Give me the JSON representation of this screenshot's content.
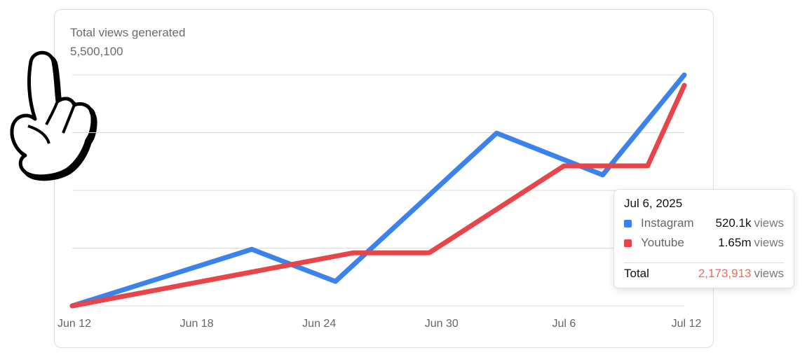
{
  "chart_data": {
    "type": "line",
    "title": "Total views generated",
    "subtitle": "5,500,100",
    "xlim": [
      0,
      30
    ],
    "xticks": [
      {
        "value": 0,
        "label": "Jun 12"
      },
      {
        "value": 6,
        "label": "Jun 18"
      },
      {
        "value": 12,
        "label": "Jun 24"
      },
      {
        "value": 18,
        "label": "Jun 30"
      },
      {
        "value": 24,
        "label": "Jul 6"
      },
      {
        "value": 30,
        "label": "Jul 12"
      }
    ],
    "ylim": [
      0,
      100
    ],
    "yticks": [
      0,
      25,
      50,
      75,
      100
    ],
    "grid": true,
    "series": [
      {
        "name": "Instagram",
        "color": "#3b82ef",
        "x": [
          0,
          8.8,
          12.9,
          20.8,
          26,
          30
        ],
        "values": [
          0,
          24.5,
          10.6,
          74.8,
          56.7,
          100
        ]
      },
      {
        "name": "Youtube",
        "color": "#e8454a",
        "x": [
          0,
          13.8,
          17.5,
          24.1,
          28.2,
          30
        ],
        "values": [
          0,
          23,
          23,
          60.6,
          60.6,
          95.5
        ]
      }
    ],
    "tooltip": {
      "title": "Jul 6, 2025",
      "values": [
        "520.1k",
        "1.65m"
      ],
      "unit": "views",
      "total_label": "Total",
      "total": "2,173,913"
    }
  }
}
